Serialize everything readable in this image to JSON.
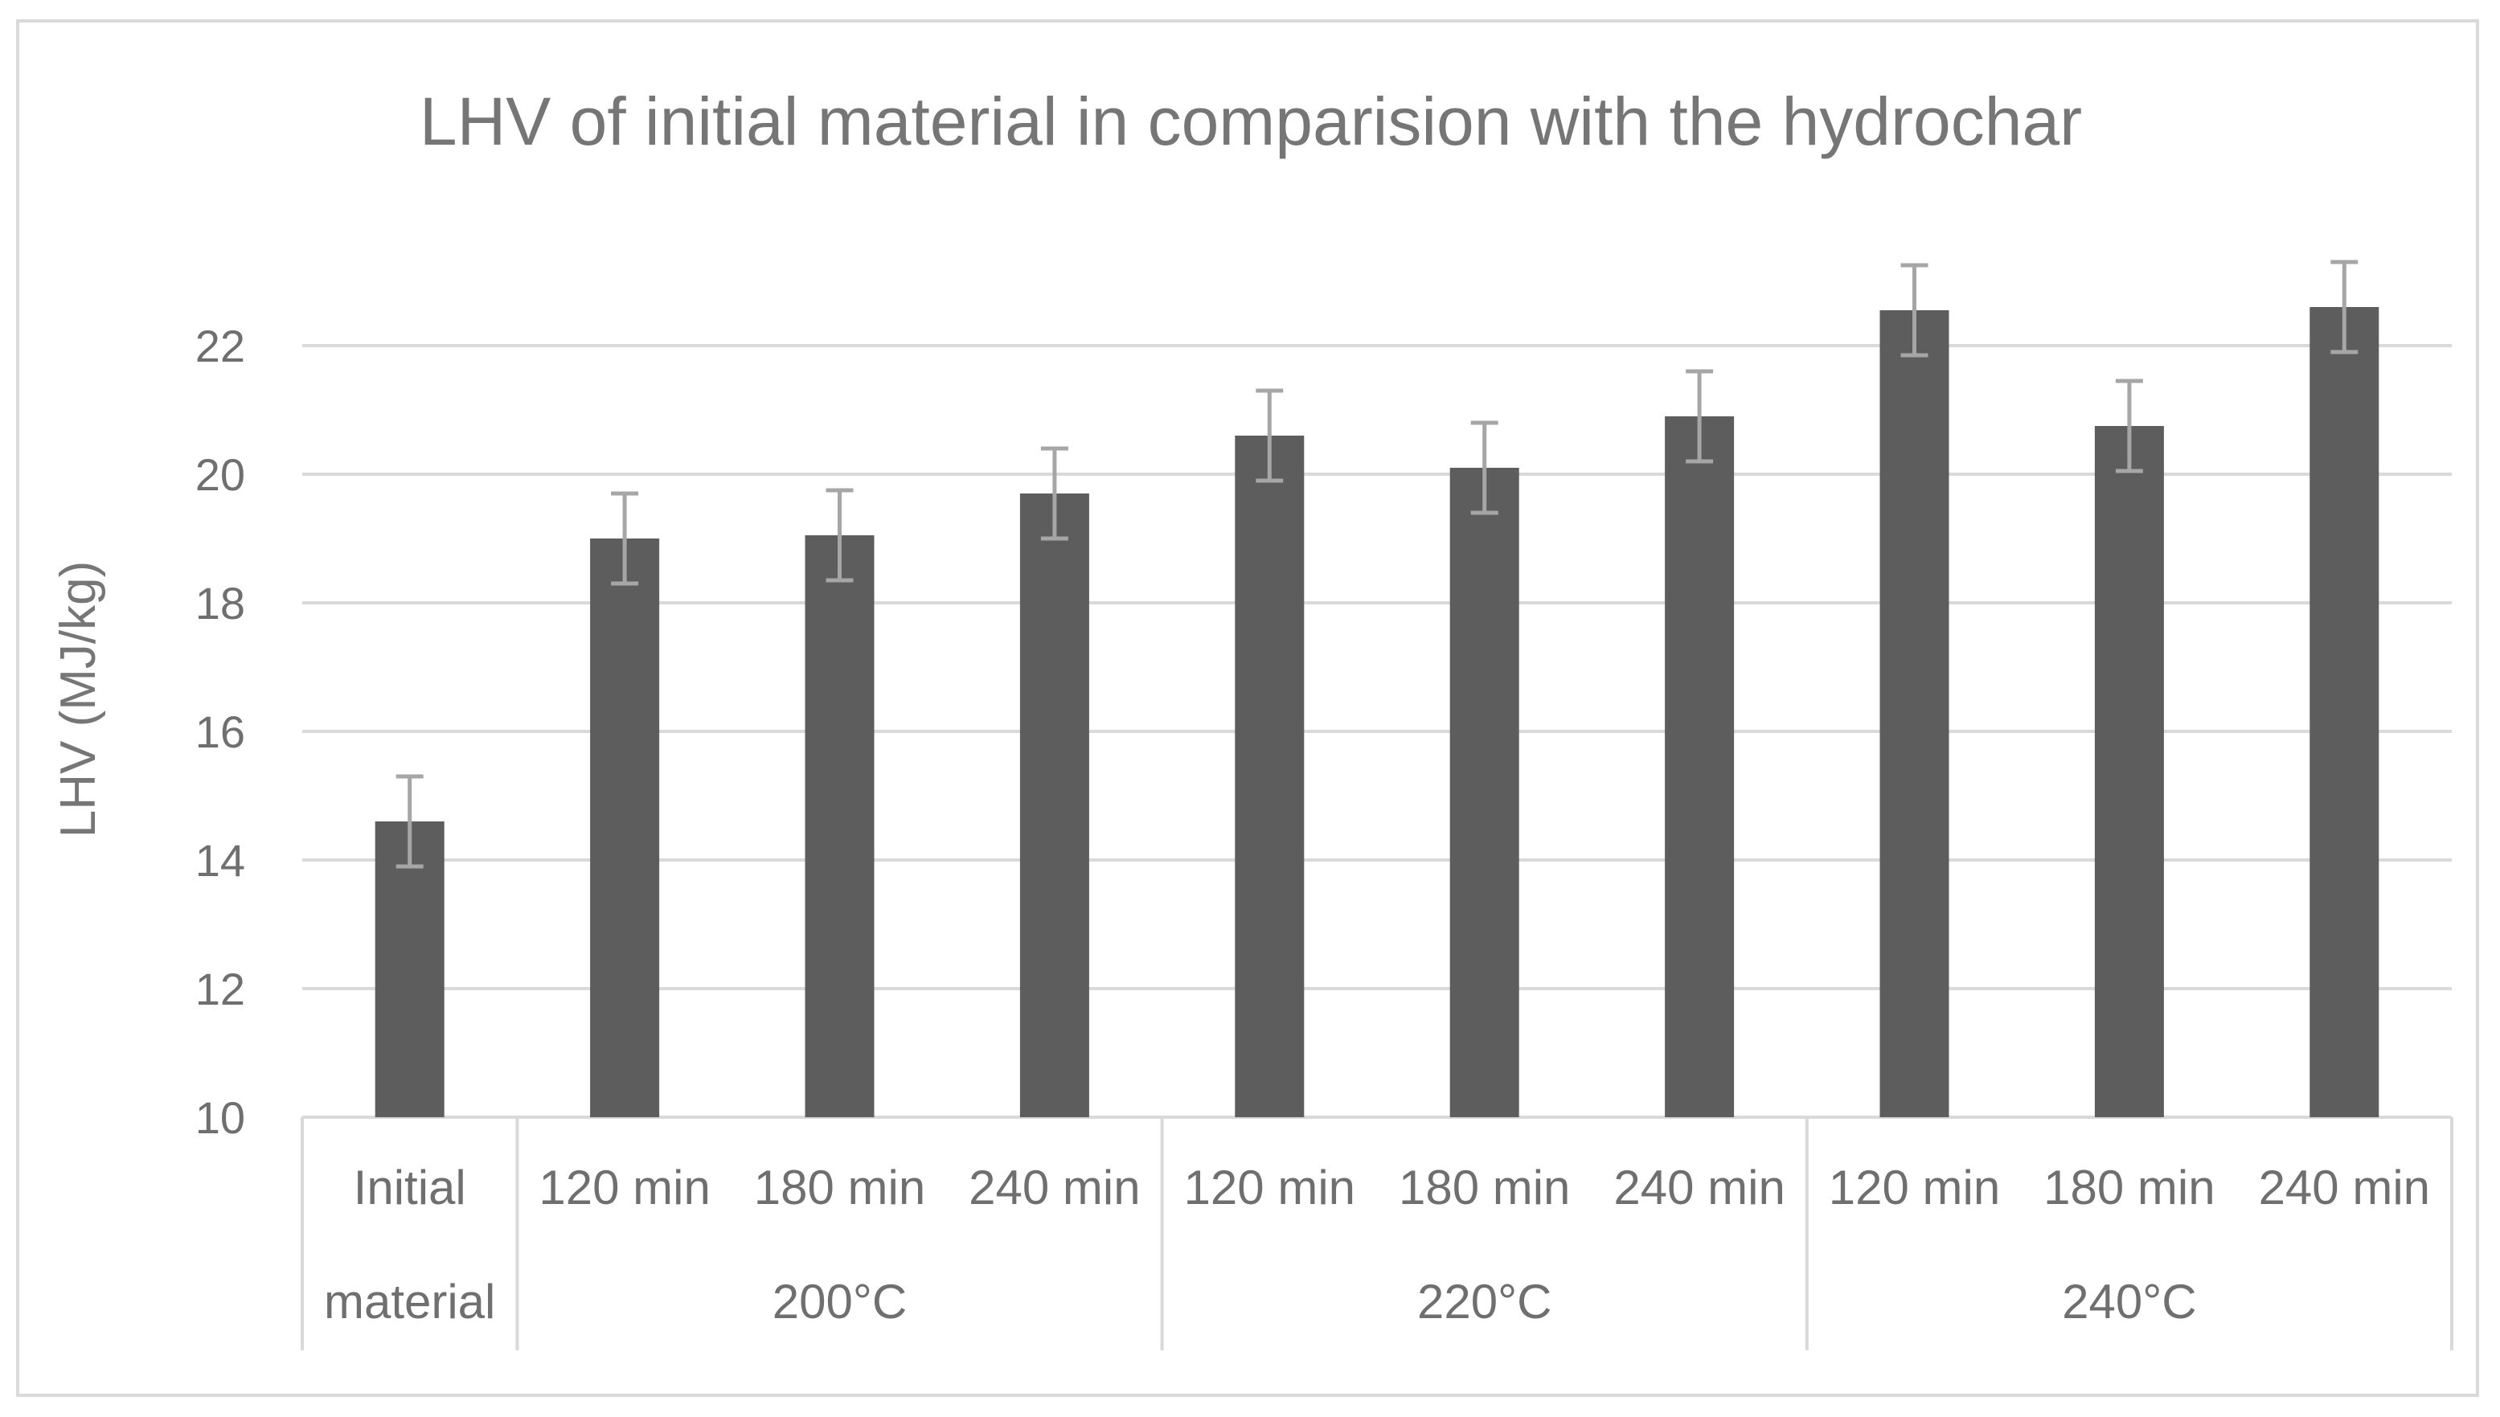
{
  "chart_data": {
    "type": "bar",
    "title": "LHV of initial material in comparision with the hydrochar",
    "xlabel": "",
    "ylabel": "LHV (MJ/kg)",
    "ylim": [
      10,
      24
    ],
    "yticks": [
      10,
      12,
      14,
      16,
      18,
      20,
      22
    ],
    "grid": true,
    "legend": "none",
    "colors": {
      "bar": "#5d5d5d",
      "error_bar": "#a6a6a6",
      "grid": "#d9d9d9",
      "text": "#767676"
    },
    "categories": [
      "Initial material",
      "120 min",
      "180 min",
      "240 min",
      "120 min",
      "180 min",
      "240 min",
      "120 min",
      "180 min",
      "240 min"
    ],
    "category_lines": [
      [
        "Initial",
        "material"
      ],
      [
        "120 min"
      ],
      [
        "180 min"
      ],
      [
        "240 min"
      ],
      [
        "120 min"
      ],
      [
        "180 min"
      ],
      [
        "240 min"
      ],
      [
        "120 min"
      ],
      [
        "180 min"
      ],
      [
        "240 min"
      ]
    ],
    "groups": [
      {
        "label": "",
        "count": 1
      },
      {
        "label": "200°C",
        "count": 3
      },
      {
        "label": "220°C",
        "count": 3
      },
      {
        "label": "240°C",
        "count": 3
      }
    ],
    "values": [
      14.6,
      19.0,
      19.05,
      19.7,
      20.6,
      20.1,
      20.9,
      22.55,
      20.75,
      22.6
    ],
    "error": [
      0.7,
      0.7,
      0.7,
      0.7,
      0.7,
      0.7,
      0.7,
      0.7,
      0.7,
      0.7
    ]
  }
}
